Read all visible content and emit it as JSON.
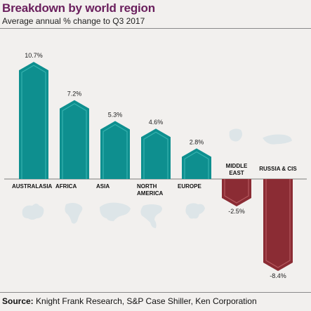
{
  "title": "Breakdown by world region",
  "subtitle": "Average annual % change to Q3 2017",
  "source_label": "Source:",
  "source_text": "Knight Frank Research, S&P Case Shiller, Ken Corporation",
  "colors": {
    "positive": "#0e8f8f",
    "positive_inner": "#35b2ae",
    "negative": "#8b2c34",
    "negative_inner": "#b5585e",
    "title": "#6a1f5d",
    "map": "#dde5e8"
  },
  "chart_data": {
    "type": "bar",
    "title": "Breakdown by world region",
    "subtitle": "Average annual % change to Q3 2017",
    "categories": [
      "AUSTRALASIA",
      "AFRICA",
      "ASIA",
      "NORTH AMERICA",
      "EUROPE",
      "MIDDLE EAST",
      "RUSSIA & CIS"
    ],
    "category_lines": [
      [
        "AUSTRALASIA"
      ],
      [
        "AFRICA"
      ],
      [
        "ASIA"
      ],
      [
        "NORTH",
        "AMERICA"
      ],
      [
        "EUROPE"
      ],
      [
        "MIDDLE",
        "EAST"
      ],
      [
        "RUSSIA & CIS"
      ]
    ],
    "values": [
      10.7,
      7.2,
      5.3,
      4.6,
      2.8,
      -2.5,
      -8.4
    ],
    "value_labels": [
      "10.7%",
      "7.2%",
      "5.3%",
      "4.6%",
      "2.8%",
      "-2.5%",
      "-8.4%"
    ],
    "icons": [
      "australasia-map-icon",
      "africa-map-icon",
      "asia-map-icon",
      "north-america-map-icon",
      "europe-map-icon",
      "middle-east-map-icon",
      "russia-map-icon"
    ],
    "grid": false,
    "legend": "none"
  }
}
